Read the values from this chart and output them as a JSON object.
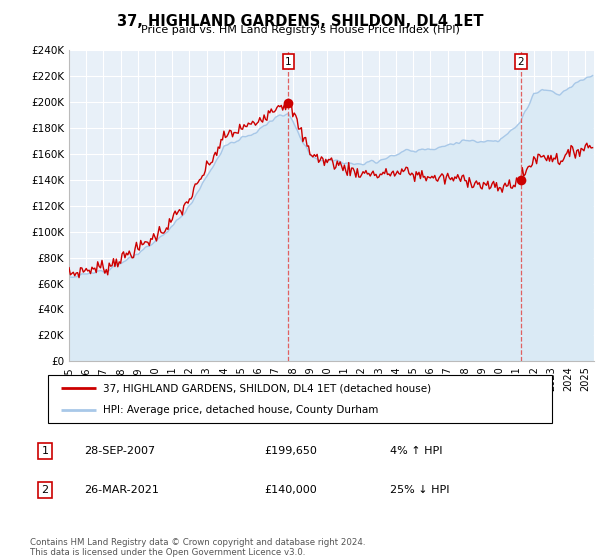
{
  "title": "37, HIGHLAND GARDENS, SHILDON, DL4 1ET",
  "subtitle": "Price paid vs. HM Land Registry's House Price Index (HPI)",
  "ylim": [
    0,
    240000
  ],
  "yticks": [
    0,
    20000,
    40000,
    60000,
    80000,
    100000,
    120000,
    140000,
    160000,
    180000,
    200000,
    220000,
    240000
  ],
  "ytick_labels": [
    "£0",
    "£20K",
    "£40K",
    "£60K",
    "£80K",
    "£100K",
    "£120K",
    "£140K",
    "£160K",
    "£180K",
    "£200K",
    "£220K",
    "£240K"
  ],
  "hpi_color": "#a8c8e8",
  "hpi_fill_color": "#daeaf5",
  "price_color": "#cc0000",
  "vline1_color": "#e06060",
  "vline2_color": "#e06060",
  "marker1_x": 2007.75,
  "marker1_price": 199650,
  "marker2_x": 2021.25,
  "marker2_price": 140000,
  "legend_label1": "37, HIGHLAND GARDENS, SHILDON, DL4 1ET (detached house)",
  "legend_label2": "HPI: Average price, detached house, County Durham",
  "anno1_label": "1",
  "anno1_date": "28-SEP-2007",
  "anno1_price": "£199,650",
  "anno1_hpi": "4% ↑ HPI",
  "anno2_label": "2",
  "anno2_date": "26-MAR-2021",
  "anno2_price": "£140,000",
  "anno2_hpi": "25% ↓ HPI",
  "footer": "Contains HM Land Registry data © Crown copyright and database right 2024.\nThis data is licensed under the Open Government Licence v3.0.",
  "xlim": [
    1995.0,
    2025.5
  ],
  "xtick_years": [
    1995,
    1996,
    1997,
    1998,
    1999,
    2000,
    2001,
    2002,
    2003,
    2004,
    2005,
    2006,
    2007,
    2008,
    2009,
    2010,
    2011,
    2012,
    2013,
    2014,
    2015,
    2016,
    2017,
    2018,
    2019,
    2020,
    2021,
    2022,
    2023,
    2024,
    2025
  ],
  "bg_color": "#e8f0f8",
  "grid_color": "#ffffff",
  "outer_bg": "#f0f4f8"
}
